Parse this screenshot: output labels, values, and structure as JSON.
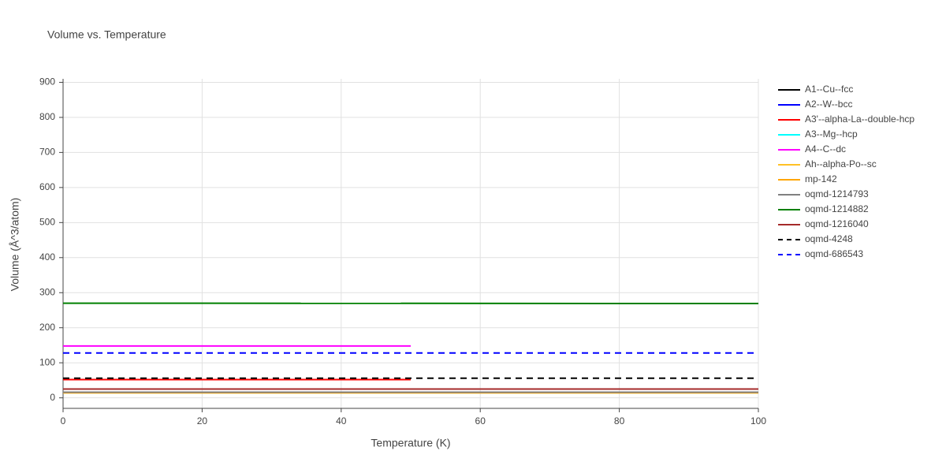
{
  "chart_data": {
    "type": "line",
    "title": "Volume vs. Temperature",
    "x_label": "Temperature (K)",
    "y_label": "Volume (Å^3/atom)",
    "xlim": [
      0,
      100
    ],
    "xticks": [
      0,
      20,
      40,
      60,
      80,
      100
    ],
    "ylim": [
      -30,
      910
    ],
    "yticks": [
      0,
      100,
      200,
      300,
      400,
      500,
      600,
      700,
      800,
      900
    ],
    "grid": true,
    "legend": "right",
    "series": [
      {
        "name": "A1--Cu--fcc",
        "color": "#000000",
        "dash": "solid",
        "x": [
          0,
          50
        ],
        "values": [
          52,
          52
        ]
      },
      {
        "name": "A2--W--bcc",
        "color": "#0000ff",
        "dash": "solid",
        "x": [
          0,
          100
        ],
        "values": [
          16,
          16
        ]
      },
      {
        "name": "A3'--alpha-La--double-hcp",
        "color": "#ff0000",
        "dash": "solid",
        "x": [
          0,
          50
        ],
        "values": [
          52,
          52
        ]
      },
      {
        "name": "A3--Mg--hcp",
        "color": "#00ffff",
        "dash": "solid",
        "x": [
          0,
          100
        ],
        "values": [
          25,
          25
        ]
      },
      {
        "name": "A4--C--dc",
        "color": "#ff00ff",
        "dash": "solid",
        "x": [
          0,
          50
        ],
        "values": [
          148,
          148
        ]
      },
      {
        "name": "Ah--alpha-Po--sc",
        "color": "#ffc125",
        "dash": "solid",
        "x": [
          0,
          100
        ],
        "values": [
          14,
          14
        ]
      },
      {
        "name": "mp-142",
        "color": "#ffa500",
        "dash": "solid",
        "x": [
          0,
          100
        ],
        "values": [
          15,
          15
        ]
      },
      {
        "name": "oqmd-1214793",
        "color": "#808080",
        "dash": "solid",
        "x": [
          0,
          100
        ],
        "values": [
          16,
          16
        ]
      },
      {
        "name": "oqmd-1214882",
        "color": "#008000",
        "dash": "solid",
        "x": [
          0,
          100
        ],
        "values": [
          270,
          269
        ]
      },
      {
        "name": "oqmd-1216040",
        "color": "#a52a2a",
        "dash": "solid",
        "x": [
          0,
          100
        ],
        "values": [
          25,
          25
        ]
      },
      {
        "name": "oqmd-4248",
        "color": "#000000",
        "dash": "dash",
        "x": [
          0,
          100
        ],
        "values": [
          56,
          56
        ]
      },
      {
        "name": "oqmd-686543",
        "color": "#0000ff",
        "dash": "dash",
        "x": [
          0,
          100
        ],
        "values": [
          128,
          128
        ]
      }
    ]
  }
}
